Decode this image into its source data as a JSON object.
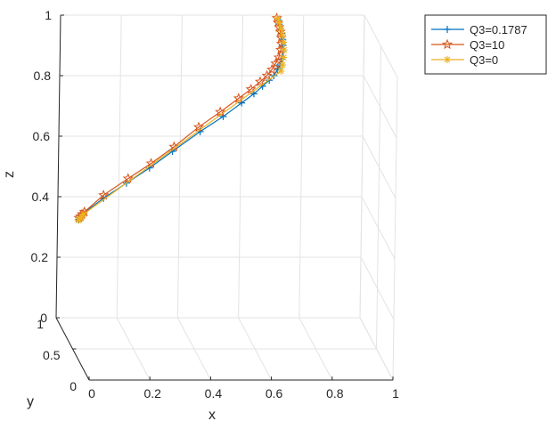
{
  "chart_data": {
    "type": "line",
    "projection": "3d",
    "title": "",
    "xlabel": "x",
    "ylabel": "y",
    "zlabel": "z",
    "xlim": [
      0,
      1
    ],
    "ylim": [
      0,
      1
    ],
    "zlim": [
      0,
      1
    ],
    "xticks": [
      "0",
      "0.2",
      "0.4",
      "0.6",
      "0.8",
      "1"
    ],
    "yticks": [
      "0",
      "0.5",
      "1"
    ],
    "zticks": [
      "0",
      "0.2",
      "0.4",
      "0.6",
      "0.8",
      "1"
    ],
    "grid": true,
    "legend_position": "top-right",
    "series": [
      {
        "name": "Q3=0.1787",
        "color": "#0072BD",
        "marker": "plus",
        "points": [
          [
            0.07,
            1.0,
            0.325
          ],
          [
            0.075,
            1.0,
            0.33
          ],
          [
            0.08,
            1.0,
            0.338
          ],
          [
            0.085,
            1.0,
            0.345
          ],
          [
            0.15,
            1.0,
            0.395
          ],
          [
            0.225,
            1.0,
            0.445
          ],
          [
            0.3,
            1.0,
            0.495
          ],
          [
            0.375,
            1.0,
            0.55
          ],
          [
            0.465,
            1.0,
            0.615
          ],
          [
            0.54,
            1.0,
            0.665
          ],
          [
            0.6,
            1.0,
            0.71
          ],
          [
            0.64,
            1.0,
            0.74
          ],
          [
            0.668,
            1.0,
            0.765
          ],
          [
            0.69,
            1.0,
            0.785
          ],
          [
            0.705,
            1.0,
            0.8
          ],
          [
            0.716,
            1.0,
            0.82
          ],
          [
            0.724,
            1.0,
            0.835
          ],
          [
            0.73,
            1.0,
            0.855
          ],
          [
            0.733,
            1.0,
            0.88
          ],
          [
            0.733,
            1.0,
            0.9
          ],
          [
            0.732,
            1.0,
            0.92
          ],
          [
            0.729,
            1.0,
            0.94
          ],
          [
            0.725,
            1.0,
            0.955
          ],
          [
            0.72,
            1.0,
            0.97
          ],
          [
            0.715,
            1.0,
            0.985
          ]
        ]
      },
      {
        "name": "Q3=10",
        "color": "#D95319",
        "marker": "pentagram",
        "points": [
          [
            0.07,
            1.0,
            0.33
          ],
          [
            0.075,
            1.0,
            0.335
          ],
          [
            0.08,
            1.0,
            0.342
          ],
          [
            0.088,
            1.0,
            0.35
          ],
          [
            0.15,
            1.0,
            0.405
          ],
          [
            0.23,
            1.0,
            0.46
          ],
          [
            0.305,
            1.0,
            0.51
          ],
          [
            0.38,
            1.0,
            0.565
          ],
          [
            0.46,
            1.0,
            0.63
          ],
          [
            0.53,
            1.0,
            0.68
          ],
          [
            0.59,
            1.0,
            0.725
          ],
          [
            0.63,
            1.0,
            0.755
          ],
          [
            0.66,
            1.0,
            0.78
          ],
          [
            0.682,
            1.0,
            0.8
          ],
          [
            0.698,
            1.0,
            0.82
          ],
          [
            0.71,
            1.0,
            0.84
          ],
          [
            0.72,
            1.0,
            0.86
          ],
          [
            0.726,
            1.0,
            0.885
          ],
          [
            0.728,
            1.0,
            0.905
          ],
          [
            0.727,
            1.0,
            0.925
          ],
          [
            0.724,
            1.0,
            0.945
          ],
          [
            0.72,
            1.0,
            0.96
          ],
          [
            0.716,
            1.0,
            0.975
          ],
          [
            0.712,
            1.0,
            0.99
          ]
        ]
      },
      {
        "name": "Q3=0",
        "color": "#EDB120",
        "marker": "asterisk",
        "points": [
          [
            0.068,
            1.0,
            0.322
          ],
          [
            0.074,
            1.0,
            0.328
          ],
          [
            0.08,
            1.0,
            0.335
          ],
          [
            0.086,
            1.0,
            0.343
          ],
          [
            0.728,
            1.0,
            0.815
          ],
          [
            0.733,
            1.0,
            0.835
          ],
          [
            0.736,
            1.0,
            0.86
          ],
          [
            0.737,
            1.0,
            0.885
          ],
          [
            0.735,
            1.0,
            0.91
          ],
          [
            0.731,
            1.0,
            0.935
          ],
          [
            0.726,
            1.0,
            0.955
          ],
          [
            0.72,
            1.0,
            0.975
          ],
          [
            0.714,
            1.0,
            0.99
          ]
        ]
      }
    ]
  }
}
